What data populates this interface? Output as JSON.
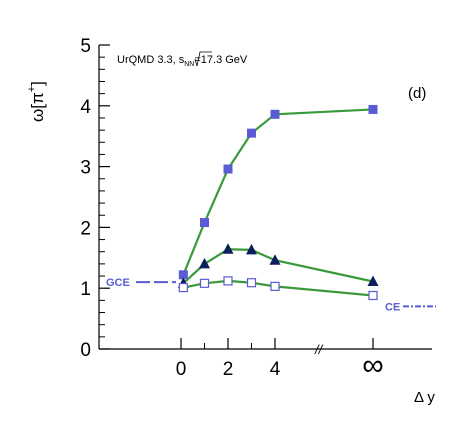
{
  "chart_data": {
    "type": "scatter",
    "annotation": {
      "prefix": "UrQMD 3.3, ",
      "sqrt": "s",
      "sub": "NN",
      "suffix": "=17.3 GeV"
    },
    "panel_label": "(d)",
    "ylabel": {
      "base": "ω[π",
      "sup": "+",
      "close": "]"
    },
    "xlabel": "Δ y",
    "ylim": [
      0,
      5
    ],
    "y_ticks": [
      "0",
      "1",
      "2",
      "3",
      "4",
      "5"
    ],
    "x_ticks": [
      "0",
      "2",
      "4",
      "∞"
    ],
    "x_break_mark": "//",
    "reference_lines": [
      {
        "label": "GCE",
        "y": 1.1,
        "color": "#5b5bd6"
      },
      {
        "label": "CE",
        "y": 0.85,
        "color": "#5b5bd6"
      }
    ],
    "series": [
      {
        "marker": "filled-square",
        "color": "#5b5bd6",
        "line_color": "#3a9a3a",
        "x": [
          "0.1",
          "1",
          "2",
          "3",
          "4",
          "∞"
        ],
        "y": [
          1.22,
          2.08,
          2.96,
          3.55,
          3.86,
          3.94
        ]
      },
      {
        "marker": "filled-triangle",
        "color": "#0b1f5c",
        "line_color": "#3a9a3a",
        "x": [
          "0.1",
          "1",
          "2",
          "3",
          "4",
          "∞"
        ],
        "y": [
          1.08,
          1.4,
          1.64,
          1.63,
          1.46,
          1.11
        ]
      },
      {
        "marker": "open-square",
        "color": "#5b5bd6",
        "line_color": "#3a9a3a",
        "x": [
          "0.1",
          "1",
          "2",
          "3",
          "4",
          "∞"
        ],
        "y": [
          1.01,
          1.08,
          1.12,
          1.09,
          1.03,
          0.88
        ]
      }
    ]
  }
}
